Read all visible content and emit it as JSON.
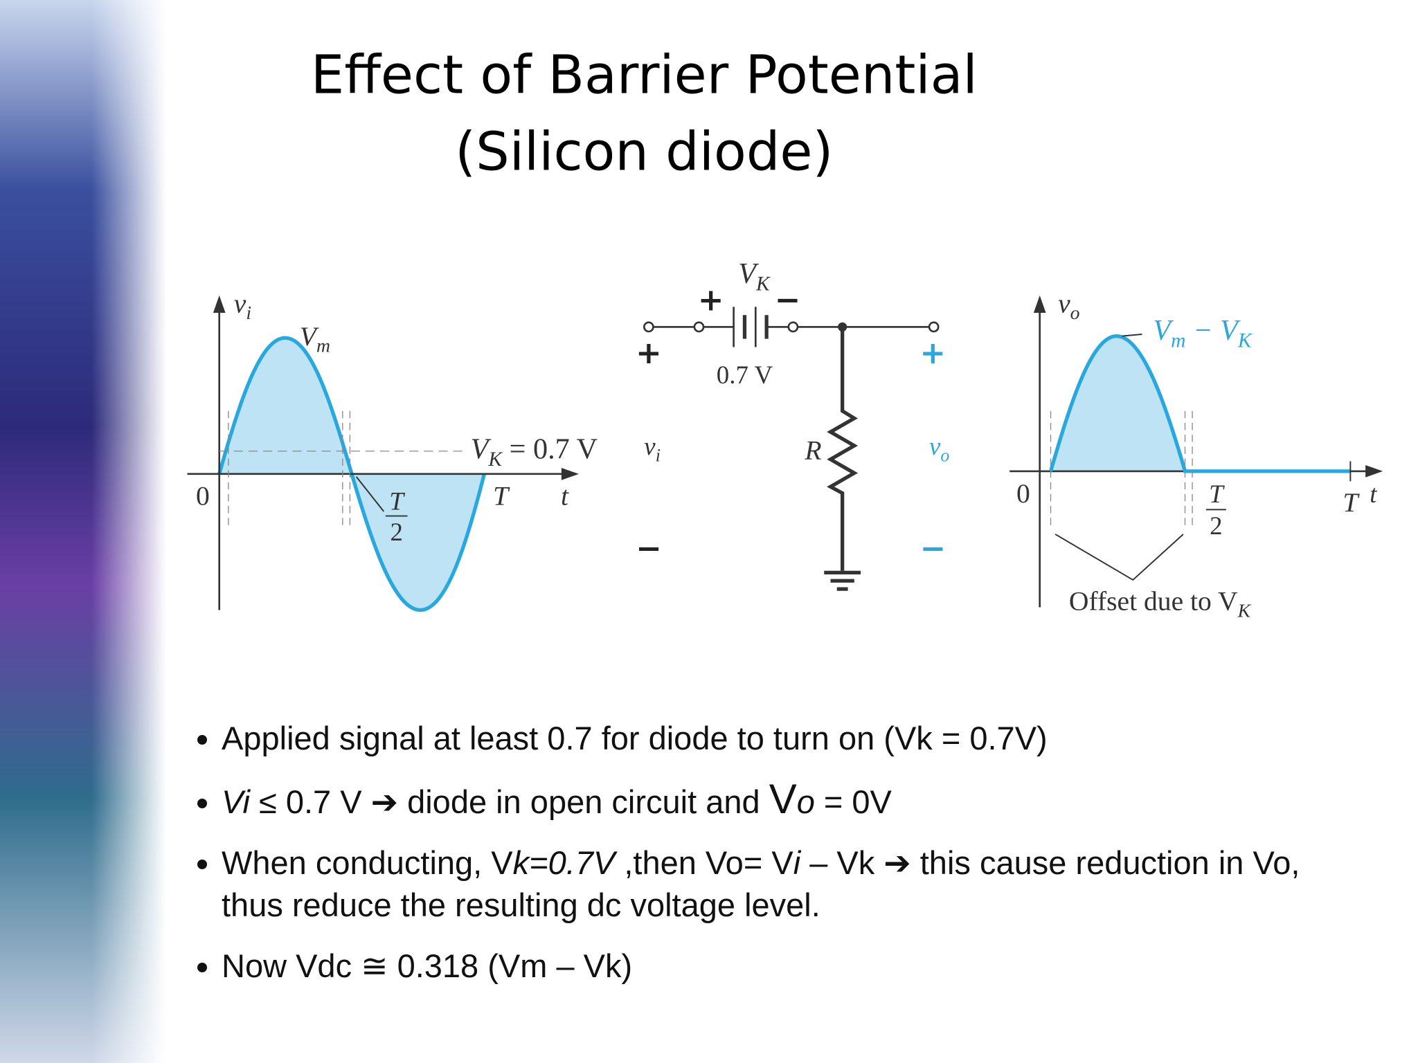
{
  "title": {
    "line1": "Effect of Barrier Potential",
    "line2": "(Silicon diode)"
  },
  "figure": {
    "input_graph": {
      "axis_label": [
        {
          "t": "v",
          "i": true
        },
        {
          "t": "i",
          "i": true,
          "sub": true
        }
      ],
      "peak_label": [
        {
          "t": "V",
          "i": true
        },
        {
          "t": "m",
          "i": true,
          "sub": true
        }
      ],
      "threshold_label": [
        {
          "t": "V",
          "i": true
        },
        {
          "t": "K",
          "i": true,
          "sub": true
        },
        {
          "t": " = 0.7 V"
        }
      ],
      "origin": "0",
      "half_period": {
        "num": "T",
        "den": "2"
      },
      "period": "T",
      "time": "t"
    },
    "circuit": {
      "battery_label": [
        {
          "t": "V",
          "i": true
        },
        {
          "t": "K",
          "i": true,
          "sub": true
        }
      ],
      "battery_plus": "+",
      "battery_minus": "−",
      "battery_value": "0.7 V",
      "input_plus": "+",
      "input_minus": "−",
      "input_label": [
        {
          "t": "v",
          "i": true
        },
        {
          "t": "i",
          "i": true,
          "sub": true
        }
      ],
      "resistor_label": "R",
      "output_label": [
        {
          "t": "v",
          "i": true
        },
        {
          "t": "o",
          "i": true,
          "sub": true
        }
      ],
      "output_plus": "+",
      "output_minus": "−"
    },
    "output_graph": {
      "axis_label": [
        {
          "t": "v",
          "i": true
        },
        {
          "t": "o",
          "i": true,
          "sub": true
        }
      ],
      "peak_label": [
        {
          "t": "V",
          "i": true
        },
        {
          "t": "m",
          "i": true,
          "sub": true
        },
        {
          "t": " − V",
          "i": true
        },
        {
          "t": "K",
          "i": true,
          "sub": true
        }
      ],
      "origin": "0",
      "half_period": {
        "num": "T",
        "den": "2"
      },
      "period": "T",
      "time": "t",
      "offset_label": [
        {
          "t": "Offset due to V"
        },
        {
          "t": "K",
          "i": true,
          "sub": true
        }
      ]
    }
  },
  "bullets": [
    [
      {
        "text": "Applied signal at least 0.7 for diode to turn on (Vk = 0.7V)"
      }
    ],
    [
      {
        "text": "Vi",
        "italic": true
      },
      {
        "text": " ≤ 0.7 V ➔ diode in open circuit and "
      },
      {
        "text": "V",
        "big": true
      },
      {
        "text": "o",
        "italic": true
      },
      {
        "text": " = 0V"
      }
    ],
    [
      {
        "text": "When conducting, V"
      },
      {
        "text": "k=0.7V",
        "italic": true
      },
      {
        "text": " ,then  Vo= V"
      },
      {
        "text": "i",
        "italic": true
      },
      {
        "text": " – Vk ➔ this cause reduction in Vo, thus reduce the resulting dc voltage level."
      }
    ],
    [
      {
        "text": "Now Vdc ≅ 0.318 (Vm – Vk)"
      }
    ]
  ]
}
